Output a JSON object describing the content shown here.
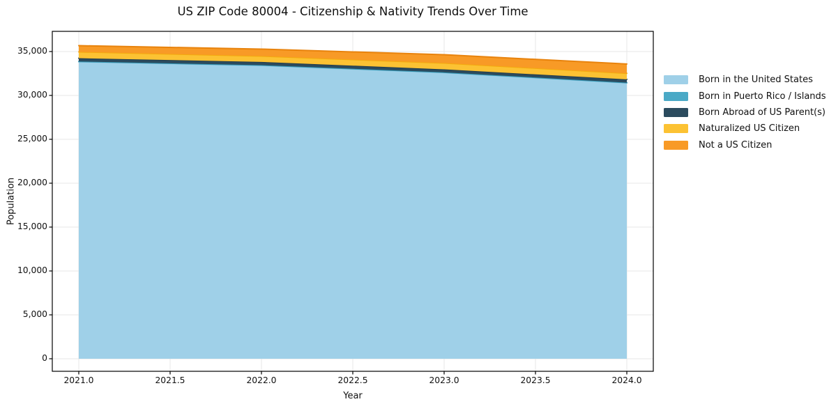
{
  "chart_data": {
    "type": "area",
    "stacked": true,
    "title": "US ZIP Code 80004 - Citizenship & Nativity Trends Over Time",
    "xlabel": "Year",
    "ylabel": "Population",
    "x": [
      2021,
      2022,
      2023,
      2024
    ],
    "series": [
      {
        "id": "born-in-us",
        "name": "Born in the United States",
        "color": "#9FD0E8",
        "edge": "#8CC5DF",
        "values": [
          33830,
          33410,
          32590,
          31420
        ]
      },
      {
        "id": "puerto-rico-islands",
        "name": "Born in Puerto Rico / Islands",
        "color": "#4AA9C6",
        "edge": "#3398B6",
        "values": [
          40,
          40,
          40,
          40
        ]
      },
      {
        "id": "born-abroad",
        "name": "Born Abroad of US Parent(s)",
        "color": "#2B4B5E",
        "edge": "#233C4C",
        "values": [
          370,
          370,
          340,
          370
        ]
      },
      {
        "id": "naturalized",
        "name": "Naturalized US Citizen",
        "color": "#FCC233",
        "edge": "#F3AA0E",
        "values": [
          720,
          660,
          720,
          690
        ]
      },
      {
        "id": "not-citizen",
        "name": "Not a US Citizen",
        "color": "#F89A26",
        "edge": "#E8830D",
        "values": [
          710,
          800,
          950,
          1060
        ]
      }
    ],
    "totals": [
      35670,
      35280,
      34640,
      33580
    ],
    "xticks": {
      "values": [
        2021.0,
        2021.5,
        2022.0,
        2022.5,
        2023.0,
        2023.5,
        2024.0
      ],
      "labels": [
        "2021.0",
        "2021.5",
        "2022.0",
        "2022.5",
        "2023.0",
        "2023.5",
        "2024.0"
      ]
    },
    "yticks": {
      "values": [
        0,
        5000,
        10000,
        15000,
        20000,
        25000,
        30000,
        35000
      ],
      "labels": [
        "0",
        "5,000",
        "10,000",
        "15,000",
        "20,000",
        "25,000",
        "30,000",
        "35,000"
      ]
    },
    "xlim": [
      2020.855,
      2024.145
    ],
    "ylim": [
      -1430,
      37300
    ],
    "grid": true,
    "grid_color": "#E7E7E7",
    "axis_color": "#000000",
    "text_color": "#101010",
    "legend_position": "right-of-plot"
  }
}
